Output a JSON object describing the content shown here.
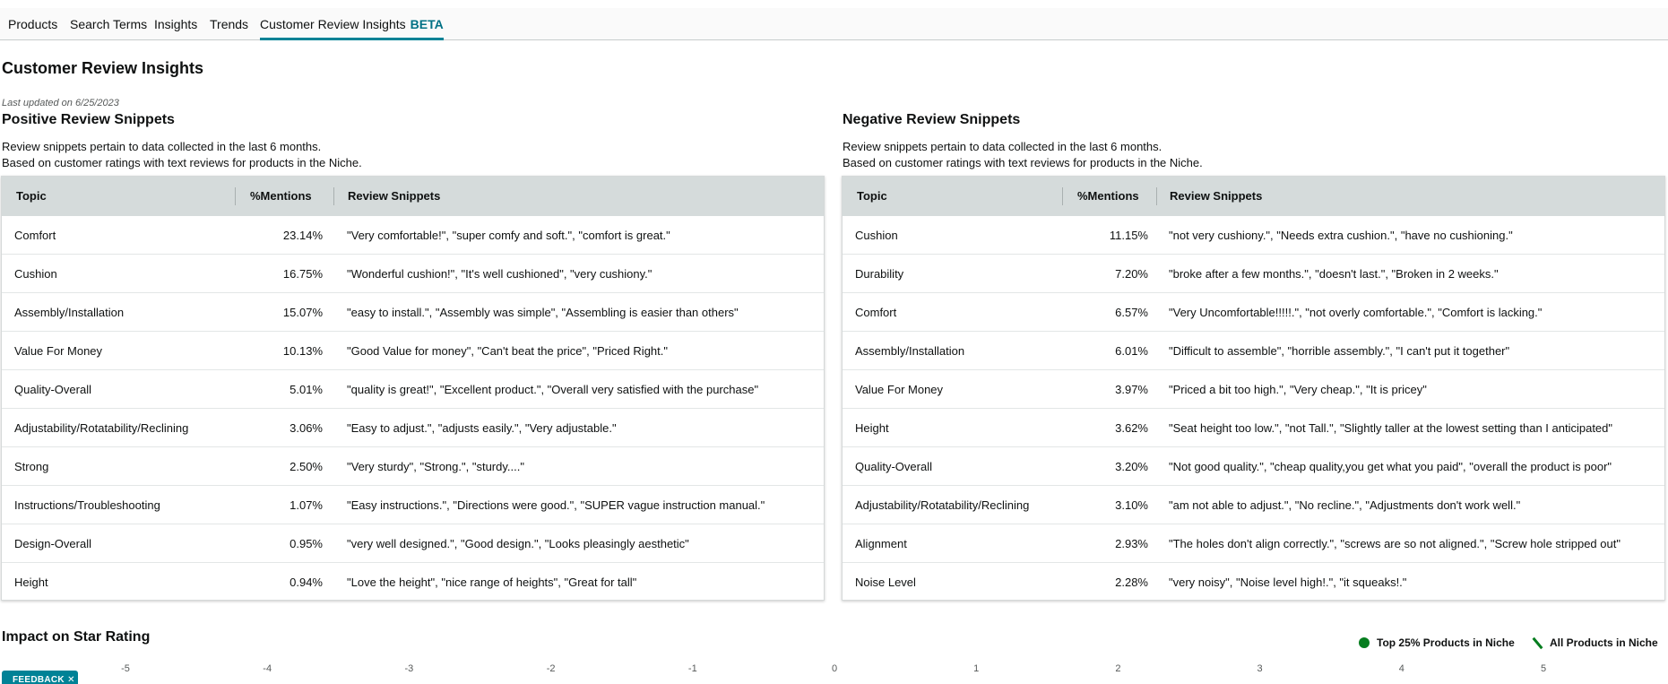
{
  "tabs": [
    {
      "label": "Products"
    },
    {
      "label": "Search Terms"
    },
    {
      "label": "Insights"
    },
    {
      "label": "Trends"
    },
    {
      "label": "Customer Review Insights",
      "badge": "BETA",
      "active": true
    }
  ],
  "page": {
    "title": "Customer Review Insights",
    "last_updated": "Last updated on 6/25/2023"
  },
  "positive": {
    "title": "Positive Review Snippets",
    "note1": "Review snippets pertain to data collected in the last 6 months.",
    "note2": "Based on customer ratings with text reviews for products in the Niche.",
    "headers": {
      "topic": "Topic",
      "mentions": "%Mentions",
      "snippets": "Review Snippets"
    },
    "rows": [
      {
        "topic": "Comfort",
        "mentions": "23.14%",
        "snippets": "\"Very comfortable!\", \"super comfy and soft.\", \"comfort is great.\""
      },
      {
        "topic": "Cushion",
        "mentions": "16.75%",
        "snippets": "\"Wonderful cushion!\", \"It's well cushioned\", \"very cushiony.\""
      },
      {
        "topic": "Assembly/Installation",
        "mentions": "15.07%",
        "snippets": "\"easy to install.\", \"Assembly was simple\", \"Assembling is easier than others\""
      },
      {
        "topic": "Value For Money",
        "mentions": "10.13%",
        "snippets": "\"Good Value for money\", \"Can't beat the price\", \"Priced Right.\""
      },
      {
        "topic": "Quality-Overall",
        "mentions": "5.01%",
        "snippets": "\"quality is great!\", \"Excellent product.\", \"Overall very satisfied with the purchase\""
      },
      {
        "topic": "Adjustability/Rotatability/Reclining",
        "mentions": "3.06%",
        "snippets": "\"Easy to adjust.\", \"adjusts easily.\", \"Very adjustable.\""
      },
      {
        "topic": "Strong",
        "mentions": "2.50%",
        "snippets": "\"Very sturdy\", \"Strong.\", \"sturdy....\""
      },
      {
        "topic": "Instructions/Troubleshooting",
        "mentions": "1.07%",
        "snippets": "\"Easy instructions.\", \"Directions were good.\", \"SUPER vague instruction manual.\""
      },
      {
        "topic": "Design-Overall",
        "mentions": "0.95%",
        "snippets": "\"very well designed.\", \"Good design.\", \"Looks pleasingly aesthetic\""
      },
      {
        "topic": "Height",
        "mentions": "0.94%",
        "snippets": "\"Love the height\", \"nice range of heights\", \"Great for tall\""
      }
    ]
  },
  "negative": {
    "title": "Negative Review Snippets",
    "note1": "Review snippets pertain to data collected in the last 6 months.",
    "note2": "Based on customer ratings with text reviews for products in the Niche.",
    "headers": {
      "topic": "Topic",
      "mentions": "%Mentions",
      "snippets": "Review Snippets"
    },
    "rows": [
      {
        "topic": "Cushion",
        "mentions": "11.15%",
        "snippets": "\"not very cushiony.\", \"Needs extra cushion.\", \"have no cushioning.\""
      },
      {
        "topic": "Durability",
        "mentions": "7.20%",
        "snippets": "\"broke after a few months.\", \"doesn't last.\", \"Broken in 2 weeks.\""
      },
      {
        "topic": "Comfort",
        "mentions": "6.57%",
        "snippets": "\"Very Uncomfortable!!!!!.\", \"not overly comfortable.\", \"Comfort is lacking.\""
      },
      {
        "topic": "Assembly/Installation",
        "mentions": "6.01%",
        "snippets": "\"Difficult to assemble\", \"horrible assembly.\", \"I can't put it together\""
      },
      {
        "topic": "Value For Money",
        "mentions": "3.97%",
        "snippets": "\"Priced a bit too high.\", \"Very cheap.\", \"It is pricey\""
      },
      {
        "topic": "Height",
        "mentions": "3.62%",
        "snippets": "\"Seat height too low.\", \"not Tall.\", \"Slightly taller at the lowest setting than I anticipated\""
      },
      {
        "topic": "Quality-Overall",
        "mentions": "3.20%",
        "snippets": "\"Not good quality.\", \"cheap quality,you get what you paid\", \"overall the product is poor\""
      },
      {
        "topic": "Adjustability/Rotatability/Reclining",
        "mentions": "3.10%",
        "snippets": "\"am not able to adjust.\", \"No recline.\", \"Adjustments don't work well.\""
      },
      {
        "topic": "Alignment",
        "mentions": "2.93%",
        "snippets": "\"The holes don't align correctly.\", \"screws are so not aligned.\", \"Screw hole stripped out\""
      },
      {
        "topic": "Noise Level",
        "mentions": "2.28%",
        "snippets": "\"very noisy\", \"Noise level high!.\", \"it squeaks!.\""
      }
    ]
  },
  "impact": {
    "title": "Impact on Star Rating",
    "legend_top": "Top 25% Products in Niche",
    "legend_all": "All Products in Niche",
    "axis_ticks": [
      "-5",
      "-4",
      "-3",
      "-2",
      "-1",
      "0",
      "1",
      "2",
      "3",
      "4",
      "5"
    ]
  },
  "feedback": {
    "label": "FEEDBACK",
    "close": "✕"
  },
  "colors": {
    "accent": "#008296",
    "header_bg": "#d5dbdb",
    "legend_green": "#067d1f"
  }
}
